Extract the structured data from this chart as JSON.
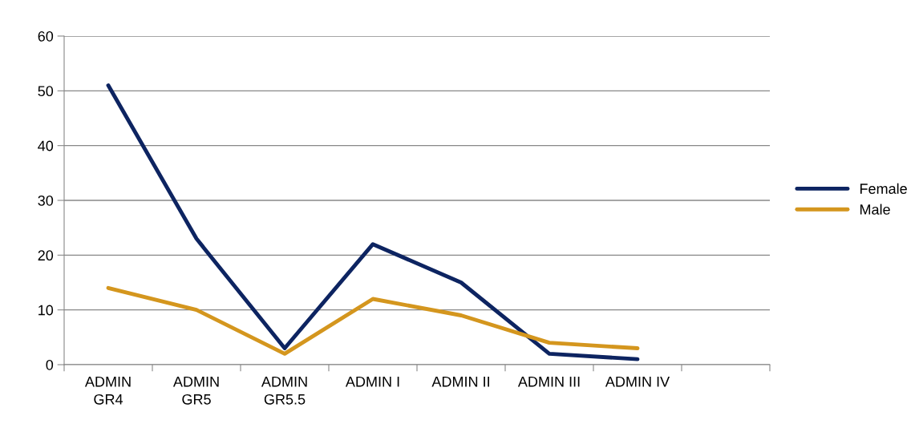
{
  "chart_data": {
    "type": "line",
    "categories": [
      "ADMIN\nGR4",
      "ADMIN\nGR5",
      "ADMIN\nGR5.5",
      "ADMIN I",
      "ADMIN II",
      "ADMIN III",
      "ADMIN IV",
      null
    ],
    "series": [
      {
        "name": "Female",
        "color": "#0d2461",
        "values": [
          51,
          23,
          3,
          22,
          15,
          2,
          1,
          null
        ]
      },
      {
        "name": "Male",
        "color": "#d4961e",
        "values": [
          14,
          10,
          2,
          12,
          9,
          4,
          3,
          null
        ]
      }
    ],
    "ylim": [
      0,
      60
    ],
    "yticks": [
      0,
      10,
      20,
      30,
      40,
      50,
      60
    ],
    "grid": "y",
    "legend": "right",
    "marker": "none",
    "line_style": "solid"
  }
}
